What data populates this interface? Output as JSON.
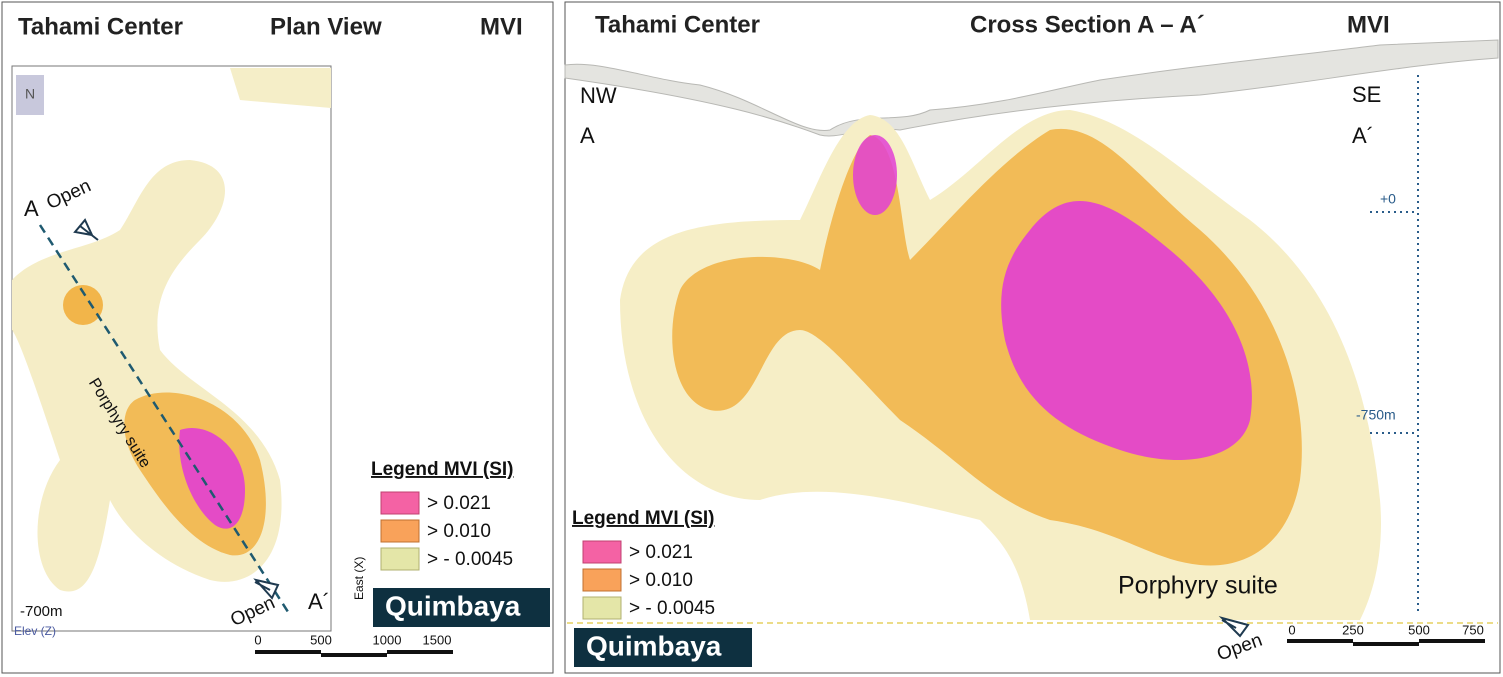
{
  "left_panel": {
    "header": {
      "location": "Tahami Center",
      "view": "Plan View",
      "method": "MVI"
    },
    "labels": {
      "start": "A",
      "open_start": "Open",
      "unit": "Porphyry suite",
      "open_end": "Open",
      "end": "A´",
      "elevation": "-700m",
      "elev_axis": "Elev (Z)",
      "east_axis": "East (X)"
    },
    "legend": {
      "title": "Legend MVI (SI)",
      "entries": [
        ">  0.021",
        ">   0.010",
        ">  - 0.0045"
      ]
    },
    "logo": "Quimbaya",
    "scale": [
      "0",
      "500",
      "1000",
      "1500"
    ]
  },
  "right_panel": {
    "header": {
      "location": "Tahami Center",
      "view": "Cross Section A – A´",
      "method": "MVI"
    },
    "labels": {
      "nw": "NW",
      "start": "A",
      "se": "SE",
      "end": "A´",
      "top_level": "+0",
      "low_level": "-750m",
      "unit": "Porphyry suite",
      "open": "Open"
    },
    "legend": {
      "title": "Legend MVI (SI)",
      "entries": [
        ">  0.021",
        ">   0.010",
        ">  - 0.0045"
      ]
    },
    "logo": "Quimbaya",
    "scale": [
      "0",
      "250",
      "500",
      "750"
    ]
  }
}
